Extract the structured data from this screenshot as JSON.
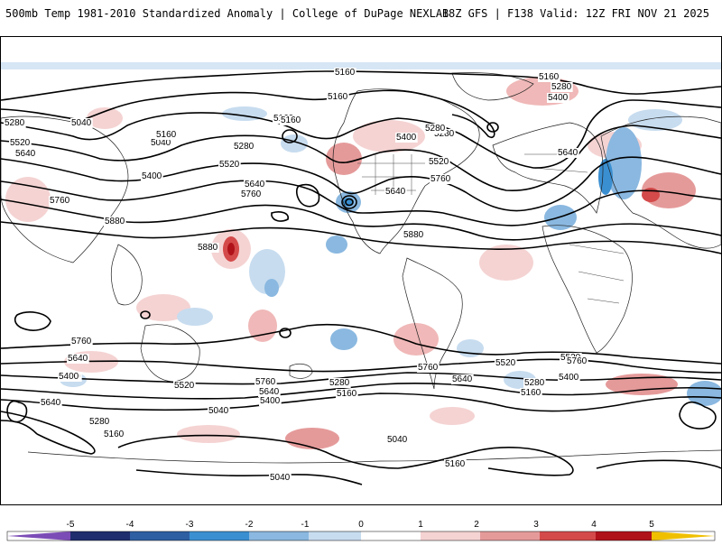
{
  "header": {
    "title": "500mb Temp 1981-2010 Standardized Anomaly | College of DuPage NEXLAB",
    "run_info": "18Z GFS | F138 Valid: 12Z FRI NOV 21 2025"
  },
  "map": {
    "contour_labels": [
      "5160",
      "5160",
      "5160",
      "5160",
      "5040",
      "5040",
      "5280",
      "5280",
      "5280",
      "5280",
      "5400",
      "5400",
      "5400",
      "5520",
      "5520",
      "5520",
      "5640",
      "5640",
      "5640",
      "5640",
      "5760",
      "5760",
      "5760",
      "5880",
      "5880",
      "5880",
      "5280",
      "5160",
      "5040",
      "5160",
      "5040",
      "5160",
      "5280",
      "5400",
      "5520",
      "5640",
      "5760",
      "5760",
      "5640",
      "5400",
      "5520",
      "5280",
      "5160",
      "5760",
      "5640",
      "5400",
      "5520",
      "5040",
      "5280",
      "5160",
      "5040",
      "5160",
      "5760",
      "5640",
      "5400"
    ]
  },
  "colorbar": {
    "ticks": [
      "-5",
      "-4",
      "-3",
      "-2",
      "-1",
      "0",
      "1",
      "2",
      "3",
      "4",
      "5"
    ],
    "colors": [
      "#7b4cb6",
      "#1f2d6e",
      "#2e5fa3",
      "#3a8fd1",
      "#8ab8e0",
      "#c7dcef",
      "#ffffff",
      "#f5d3d3",
      "#e59a9a",
      "#d44a4a",
      "#b0121a",
      "#6e0008",
      "#f0c000"
    ]
  }
}
